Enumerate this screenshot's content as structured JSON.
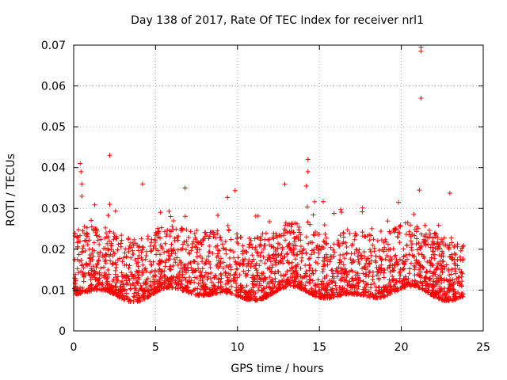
{
  "chart_data": {
    "type": "scatter",
    "title": "Day 138 of 2017, Rate Of TEC Index for receiver nrl1",
    "xlabel": "GPS time / hours",
    "ylabel": "ROTI / TECUs",
    "xlim": [
      0,
      25
    ],
    "ylim": [
      0,
      0.07
    ],
    "xticks": [
      0,
      5,
      10,
      15,
      20,
      25
    ],
    "xtick_labels": [
      "0",
      "5",
      "10",
      "15",
      "20",
      "25"
    ],
    "yticks": [
      0,
      0.01,
      0.02,
      0.03,
      0.04,
      0.05,
      0.06,
      0.07
    ],
    "ytick_labels": [
      "0",
      "0.01",
      "0.02",
      "0.03",
      "0.04",
      "0.05",
      "0.06",
      "0.07"
    ],
    "grid": true,
    "marker": "+",
    "color": "#ff0000",
    "x_range_hours": [
      0.0,
      23.8
    ],
    "typical_band": [
      0.005,
      0.02
    ],
    "outliers": [
      {
        "x": 0.4,
        "y": 0.041
      },
      {
        "x": 0.45,
        "y": 0.039
      },
      {
        "x": 0.5,
        "y": 0.036
      },
      {
        "x": 0.5,
        "y": 0.033
      },
      {
        "x": 2.2,
        "y": 0.043
      },
      {
        "x": 2.2,
        "y": 0.031
      },
      {
        "x": 4.2,
        "y": 0.036
      },
      {
        "x": 6.8,
        "y": 0.035
      },
      {
        "x": 14.3,
        "y": 0.042
      },
      {
        "x": 14.3,
        "y": 0.039
      },
      {
        "x": 14.2,
        "y": 0.0355
      },
      {
        "x": 21.2,
        "y": 0.0695
      },
      {
        "x": 21.2,
        "y": 0.0685
      },
      {
        "x": 21.2,
        "y": 0.057
      },
      {
        "x": 21.1,
        "y": 0.0345
      }
    ]
  }
}
